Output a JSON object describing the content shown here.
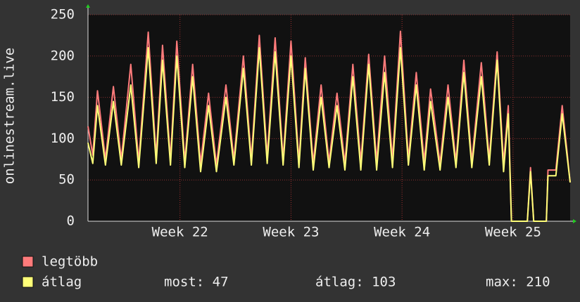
{
  "chart_data": {
    "type": "line",
    "y_label": "onlinestream.live",
    "x": [
      0,
      0.3,
      0.6,
      1.1,
      1.6,
      2.1,
      2.7,
      3.2,
      3.8,
      4.3,
      4.7,
      5.2,
      5.6,
      6.1,
      6.6,
      7.1,
      7.6,
      8.1,
      8.7,
      9.2,
      9.8,
      10.3,
      10.8,
      11.3,
      11.8,
      12.3,
      12.8,
      13.3,
      13.7,
      14.2,
      14.7,
      15.2,
      15.7,
      16.2,
      16.7,
      17.2,
      17.7,
      18.2,
      18.7,
      19.2,
      19.7,
      20.2,
      20.7,
      21.2,
      21.6,
      22.2,
      22.7,
      23.2,
      23.7,
      24.2,
      24.8,
      25.3,
      25.8,
      26.2,
      26.5,
      26.7,
      27.7,
      27.9,
      28.1,
      28.9,
      29.0,
      29.5,
      29.9,
      30.2,
      30.4
    ],
    "series": [
      {
        "name": "legtöbb",
        "color": "#ff7b7b",
        "values": [
          115,
          80,
          158,
          75,
          163,
          75,
          190,
          72,
          229,
          78,
          213,
          75,
          218,
          72,
          190,
          70,
          155,
          68,
          165,
          75,
          200,
          75,
          225,
          78,
          222,
          75,
          218,
          72,
          198,
          70,
          165,
          72,
          155,
          70,
          190,
          72,
          202,
          72,
          200,
          75,
          230,
          75,
          180,
          72,
          160,
          70,
          165,
          72,
          195,
          72,
          192,
          75,
          205,
          70,
          140,
          0,
          0,
          65,
          0,
          0,
          62,
          62,
          140,
          85,
          47
        ]
      },
      {
        "name": "átlag",
        "color": "#ffff78",
        "values": [
          95,
          70,
          140,
          68,
          145,
          68,
          165,
          65,
          210,
          70,
          195,
          68,
          200,
          65,
          175,
          60,
          140,
          60,
          150,
          68,
          185,
          68,
          210,
          70,
          205,
          68,
          200,
          65,
          185,
          62,
          150,
          65,
          140,
          62,
          175,
          62,
          190,
          62,
          180,
          65,
          210,
          68,
          165,
          62,
          145,
          62,
          150,
          65,
          180,
          65,
          175,
          68,
          195,
          60,
          130,
          0,
          0,
          60,
          0,
          0,
          55,
          55,
          130,
          80,
          47
        ]
      }
    ],
    "xlim": [
      0,
      30.4
    ],
    "xticks": [
      {
        "value": 5.8,
        "label": "Week 22"
      },
      {
        "value": 12.8,
        "label": "Week 23"
      },
      {
        "value": 19.8,
        "label": "Week 24"
      },
      {
        "value": 26.8,
        "label": "Week 25"
      }
    ],
    "ylim": [
      0,
      250
    ],
    "yticks": [
      0,
      50,
      100,
      150,
      200,
      250
    ],
    "grid": true,
    "legend_stats": [
      "most: 47",
      "átlag: 103",
      "max: 210"
    ]
  }
}
